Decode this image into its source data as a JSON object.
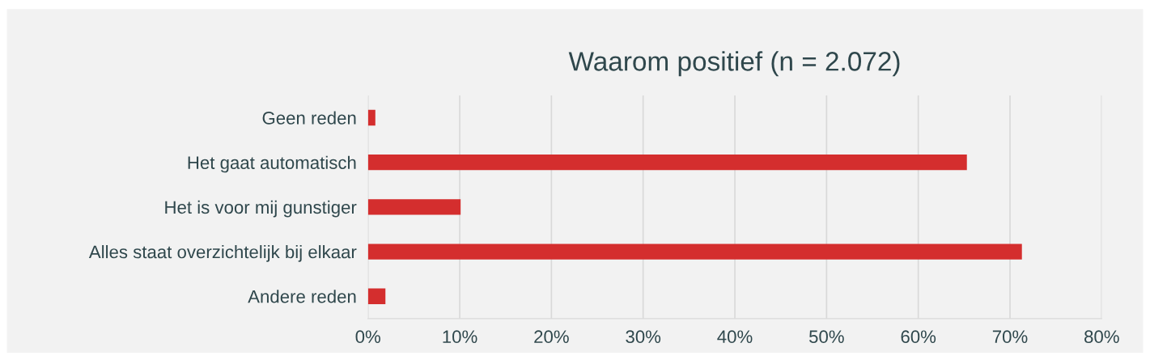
{
  "chart_data": {
    "type": "bar",
    "orientation": "horizontal",
    "title": "Waarom positief (n = 2.072)",
    "categories": [
      "Geen reden",
      "Het gaat automatisch",
      "Het is voor mij gunstiger",
      "Alles staat overzichtelijk bij elkaar",
      "Andere reden"
    ],
    "values": [
      0.8,
      65.3,
      10.1,
      71.3,
      1.9
    ],
    "color": "#d42e2e",
    "xlim": [
      0,
      80
    ],
    "xticks": [
      {
        "value": 0,
        "label": "0%"
      },
      {
        "value": 10,
        "label": "10%"
      },
      {
        "value": 20,
        "label": "20%"
      },
      {
        "value": 30,
        "label": "30%"
      },
      {
        "value": 40,
        "label": "40%"
      },
      {
        "value": 50,
        "label": "50%"
      },
      {
        "value": 60,
        "label": "60%"
      },
      {
        "value": 70,
        "label": "70%"
      },
      {
        "value": 80,
        "label": "80%"
      }
    ],
    "grid": "x",
    "legend": false
  }
}
